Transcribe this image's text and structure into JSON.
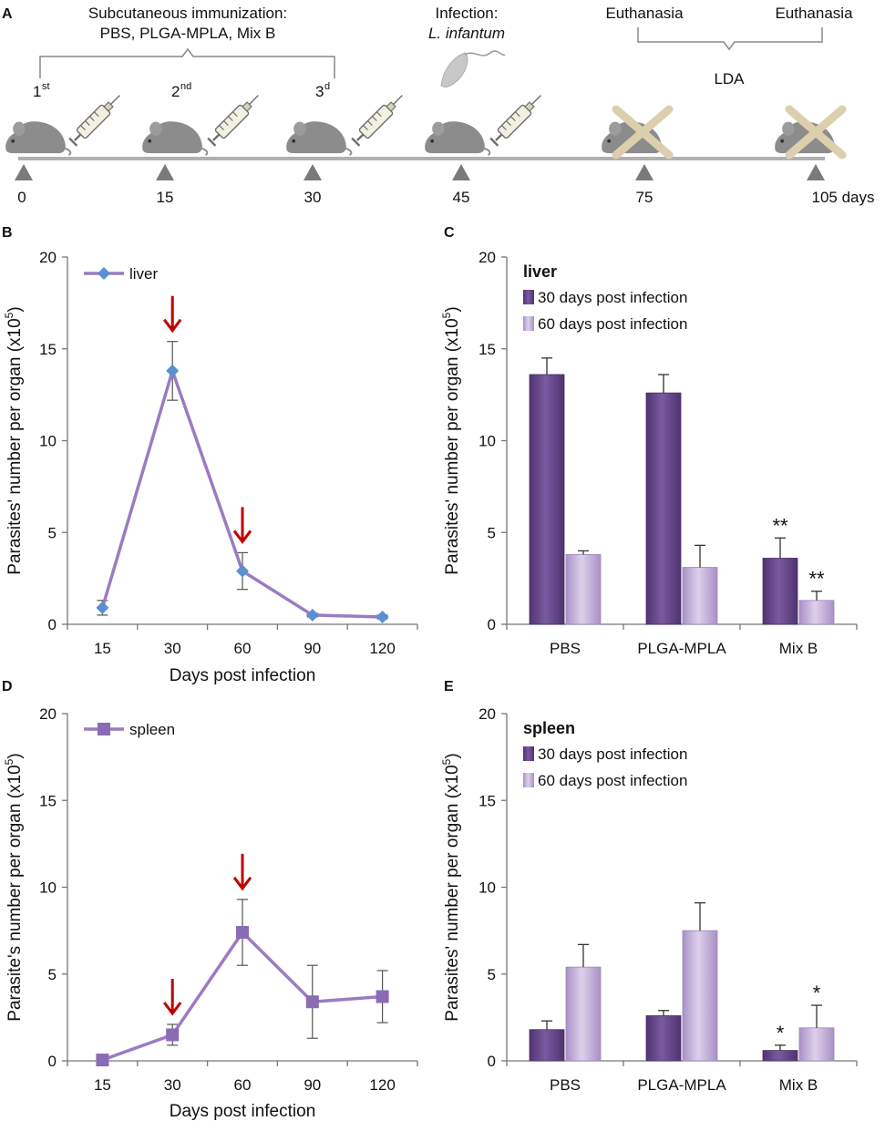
{
  "panel_a": {
    "panel_label": "A",
    "immunization_label_line1": "Subcutaneous immunization:",
    "immunization_label_line2": "PBS, PLGA-MPLA, Mix B",
    "infection_label_line1": "Infection:",
    "infection_label_line2": "L. infantum",
    "euthanasia_label_1": "Euthanasia",
    "euthanasia_label_2": "Euthanasia",
    "lda_label": "LDA",
    "dose_1_num": "1",
    "dose_1_sup": "st",
    "dose_2_num": "2",
    "dose_2_sup": "nd",
    "dose_3_num": "3",
    "dose_3_sup": "d",
    "timeline_days": [
      "0",
      "15",
      "30",
      "45",
      "75",
      "105 days"
    ],
    "colors": {
      "mouse": "#8c8c8c",
      "axis": "#b0b0b0",
      "cross": "#dccfae",
      "arrow_head": "#7a7a7a"
    }
  },
  "chart_data": [
    {
      "panel_label": "B",
      "type": "line",
      "categories": [
        "15",
        "30",
        "60",
        "90",
        "120"
      ],
      "series": [
        {
          "name": "liver",
          "values": [
            0.9,
            13.8,
            2.9,
            0.5,
            0.4
          ],
          "errors": [
            0.4,
            1.6,
            1.0,
            0.1,
            0.1
          ]
        }
      ],
      "ylabel": "Parasites' number per organ (x10",
      "ylabel_sup": "5",
      "ylabel_close": ")",
      "xlabel": "Days post infection",
      "ylim": [
        0,
        20
      ],
      "yticks": [
        "0",
        "5",
        "10",
        "15",
        "20"
      ],
      "arrows_at": [
        "30",
        "60"
      ],
      "legend_position": "top-left",
      "colors": {
        "line": "#9b7bc2",
        "marker": "#5b8fd0",
        "arrow": "#c00000"
      }
    },
    {
      "panel_label": "C",
      "type": "bar",
      "title": "liver",
      "categories": [
        "PBS",
        "PLGA-MPLA",
        "Mix B"
      ],
      "series": [
        {
          "name": "30 days post infection",
          "values": [
            13.6,
            12.6,
            3.6
          ],
          "errors": [
            0.9,
            1.0,
            1.1
          ],
          "annotations": [
            "",
            "",
            "**"
          ]
        },
        {
          "name": "60 days post infection",
          "values": [
            3.8,
            3.1,
            1.3
          ],
          "errors": [
            0.2,
            1.2,
            0.5
          ],
          "annotations": [
            "",
            "",
            "**"
          ]
        }
      ],
      "ylabel": "Parasites' number per organ (x10",
      "ylabel_sup": "5",
      "ylabel_close": ")",
      "ylim": [
        0,
        20
      ],
      "yticks": [
        "0",
        "5",
        "10",
        "15",
        "20"
      ],
      "legend_position": "top-left",
      "colors": {
        "dark": "#6b4b8c",
        "light": "#c4b2d9"
      }
    },
    {
      "panel_label": "D",
      "type": "line",
      "categories": [
        "15",
        "30",
        "60",
        "90",
        "120"
      ],
      "series": [
        {
          "name": "spleen",
          "values": [
            0.05,
            1.5,
            7.4,
            3.4,
            3.7
          ],
          "errors": [
            0.05,
            0.6,
            1.9,
            2.1,
            1.5
          ]
        }
      ],
      "ylabel": "Parasite's number per organ (x10",
      "ylabel_sup": "5",
      "ylabel_close": ")",
      "xlabel": "Days post infection",
      "ylim": [
        0,
        20
      ],
      "yticks": [
        "0",
        "5",
        "10",
        "15",
        "20"
      ],
      "arrows_at": [
        "30",
        "60"
      ],
      "legend_position": "top-left",
      "colors": {
        "line": "#9b7bc2",
        "marker": "#8a6bb5",
        "arrow": "#c00000"
      }
    },
    {
      "panel_label": "E",
      "type": "bar",
      "title": "spleen",
      "categories": [
        "PBS",
        "PLGA-MPLA",
        "Mix B"
      ],
      "series": [
        {
          "name": "30 days post infection",
          "values": [
            1.8,
            2.6,
            0.6
          ],
          "errors": [
            0.5,
            0.3,
            0.3
          ],
          "annotations": [
            "",
            "",
            "*"
          ]
        },
        {
          "name": "60 days post infection",
          "values": [
            5.4,
            7.5,
            1.9
          ],
          "errors": [
            1.3,
            1.6,
            1.3
          ],
          "annotations": [
            "",
            "",
            "*"
          ]
        }
      ],
      "ylabel": "Parasites' number per organ (x10",
      "ylabel_sup": "5",
      "ylabel_close": ")",
      "ylim": [
        0,
        20
      ],
      "yticks": [
        "0",
        "5",
        "10",
        "15",
        "20"
      ],
      "legend_position": "top-left",
      "colors": {
        "dark": "#6b4b8c",
        "light": "#c4b2d9"
      }
    }
  ]
}
